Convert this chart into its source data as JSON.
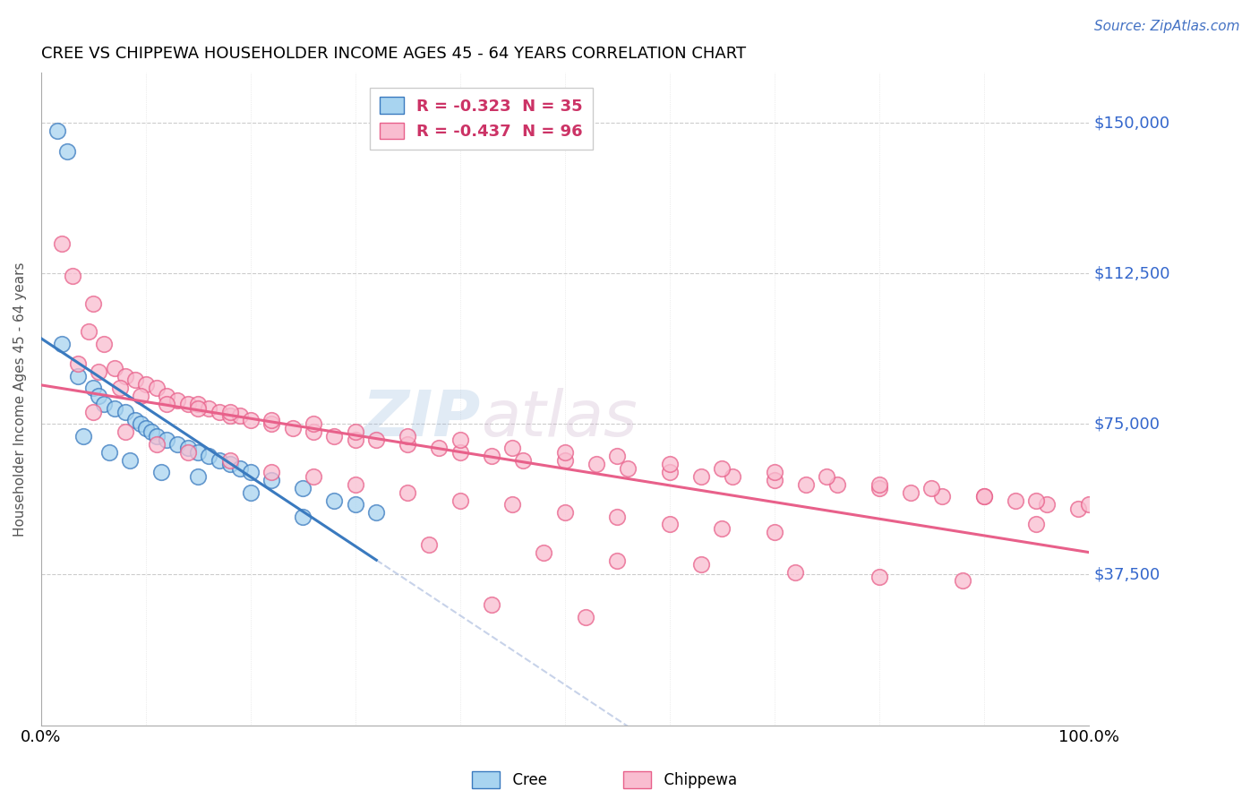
{
  "title": "CREE VS CHIPPEWA HOUSEHOLDER INCOME AGES 45 - 64 YEARS CORRELATION CHART",
  "source": "Source: ZipAtlas.com",
  "ylabel": "Householder Income Ages 45 - 64 years",
  "xlim": [
    0,
    100
  ],
  "ylim": [
    0,
    162500
  ],
  "yticks": [
    37500,
    75000,
    112500,
    150000
  ],
  "ytick_labels": [
    "$37,500",
    "$75,000",
    "$112,500",
    "$150,000"
  ],
  "xtick_labels": [
    "0.0%",
    "100.0%"
  ],
  "legend_cree": "R = -0.323  N = 35",
  "legend_chippewa": "R = -0.437  N = 96",
  "cree_color": "#a8d4f0",
  "chippewa_color": "#f9bdd0",
  "cree_line_color": "#3a7abf",
  "chippewa_line_color": "#e8608a",
  "watermark_zip": "ZIP",
  "watermark_atlas": "atlas",
  "cree_x": [
    1.5,
    2.5,
    2.0,
    3.5,
    5.0,
    5.5,
    6.0,
    7.0,
    8.0,
    9.0,
    9.5,
    10.0,
    10.5,
    11.0,
    12.0,
    13.0,
    14.0,
    15.0,
    16.0,
    17.0,
    18.0,
    19.0,
    20.0,
    22.0,
    25.0,
    28.0,
    30.0,
    32.0,
    4.0,
    6.5,
    8.5,
    11.5,
    15.0,
    20.0,
    25.0
  ],
  "cree_y": [
    148000,
    143000,
    95000,
    87000,
    84000,
    82000,
    80000,
    79000,
    78000,
    76000,
    75000,
    74000,
    73000,
    72000,
    71000,
    70000,
    69000,
    68000,
    67000,
    66000,
    65000,
    64000,
    63000,
    61000,
    59000,
    56000,
    55000,
    53000,
    72000,
    68000,
    66000,
    63000,
    62000,
    58000,
    52000
  ],
  "chippewa_x": [
    2.0,
    3.0,
    4.5,
    5.0,
    6.0,
    7.0,
    8.0,
    9.0,
    10.0,
    11.0,
    12.0,
    13.0,
    14.0,
    15.0,
    16.0,
    17.0,
    18.0,
    19.0,
    20.0,
    22.0,
    24.0,
    26.0,
    28.0,
    30.0,
    32.0,
    35.0,
    38.0,
    40.0,
    43.0,
    46.0,
    50.0,
    53.0,
    56.0,
    60.0,
    63.0,
    66.0,
    70.0,
    73.0,
    76.0,
    80.0,
    83.0,
    86.0,
    90.0,
    93.0,
    96.0,
    99.0,
    3.5,
    5.5,
    7.5,
    9.5,
    12.0,
    15.0,
    18.0,
    22.0,
    26.0,
    30.0,
    35.0,
    40.0,
    45.0,
    50.0,
    55.0,
    60.0,
    65.0,
    70.0,
    75.0,
    80.0,
    85.0,
    90.0,
    95.0,
    100.0,
    5.0,
    8.0,
    11.0,
    14.0,
    18.0,
    22.0,
    26.0,
    30.0,
    35.0,
    40.0,
    45.0,
    50.0,
    55.0,
    60.0,
    65.0,
    70.0,
    37.0,
    48.0,
    55.0,
    63.0,
    72.0,
    80.0,
    88.0,
    95.0,
    43.0,
    52.0
  ],
  "chippewa_y": [
    120000,
    112000,
    98000,
    105000,
    95000,
    89000,
    87000,
    86000,
    85000,
    84000,
    82000,
    81000,
    80000,
    80000,
    79000,
    78000,
    77000,
    77000,
    76000,
    75000,
    74000,
    73000,
    72000,
    71000,
    71000,
    70000,
    69000,
    68000,
    67000,
    66000,
    66000,
    65000,
    64000,
    63000,
    62000,
    62000,
    61000,
    60000,
    60000,
    59000,
    58000,
    57000,
    57000,
    56000,
    55000,
    54000,
    90000,
    88000,
    84000,
    82000,
    80000,
    79000,
    78000,
    76000,
    75000,
    73000,
    72000,
    71000,
    69000,
    68000,
    67000,
    65000,
    64000,
    63000,
    62000,
    60000,
    59000,
    57000,
    56000,
    55000,
    78000,
    73000,
    70000,
    68000,
    66000,
    63000,
    62000,
    60000,
    58000,
    56000,
    55000,
    53000,
    52000,
    50000,
    49000,
    48000,
    45000,
    43000,
    41000,
    40000,
    38000,
    37000,
    36000,
    50000,
    30000,
    27000
  ]
}
